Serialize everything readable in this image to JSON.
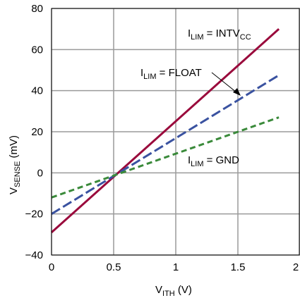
{
  "chart_data": {
    "type": "line",
    "xlabel": {
      "main": "V",
      "sub": "ITH",
      "rest": " (V)"
    },
    "ylabel": {
      "main": "V",
      "sub": "SENSE",
      "rest": " (mV)"
    },
    "xlim": [
      0,
      2
    ],
    "ylim": [
      -40,
      80
    ],
    "x_ticks": [
      "0",
      "0.5",
      "1",
      "1.5",
      "2"
    ],
    "x_tick_values": [
      0,
      0.5,
      1,
      1.5,
      2
    ],
    "y_ticks": [
      "80",
      "60",
      "40",
      "20",
      "0",
      "−20",
      "−40"
    ],
    "y_tick_values": [
      80,
      60,
      40,
      20,
      0,
      -20,
      -40
    ],
    "grid": true,
    "series": [
      {
        "name": "I_LIM = INTV_CC",
        "label_main": "I",
        "label_sub": "LIM",
        "label_mid": " = INTV",
        "label_sub2": "CC",
        "x": [
          0,
          1.83
        ],
        "y": [
          -29,
          70
        ],
        "color": "#9a0a3c",
        "style": "solid"
      },
      {
        "name": "I_LIM = FLOAT",
        "label_main": "I",
        "label_sub": "LIM",
        "label_mid": " = FLOAT",
        "label_sub2": "",
        "x": [
          0,
          1.83
        ],
        "y": [
          -20,
          47.5
        ],
        "color": "#3a52a0",
        "style": "dashed"
      },
      {
        "name": "I_LIM = GND",
        "label_main": "I",
        "label_sub": "LIM",
        "label_mid": " = GND",
        "label_sub2": "",
        "x": [
          0,
          1.83
        ],
        "y": [
          -12,
          27
        ],
        "color": "#3a8a3a",
        "style": "dashed"
      }
    ]
  }
}
